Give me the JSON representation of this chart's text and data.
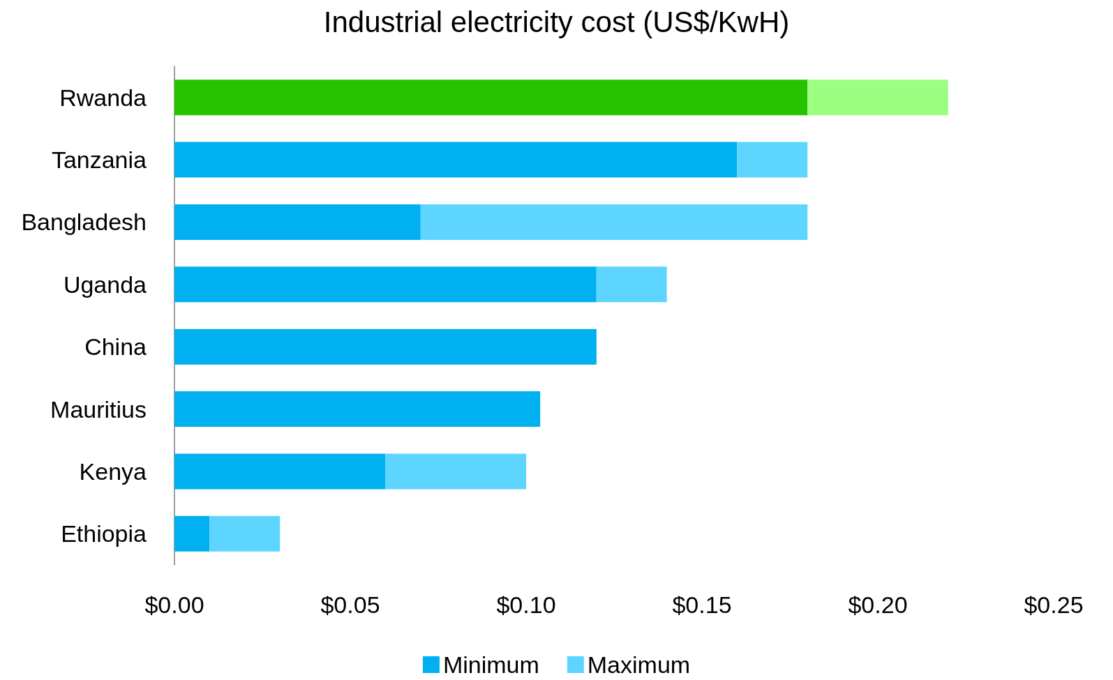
{
  "chart_data": {
    "type": "bar",
    "title": "Industrial electricity cost (US$/KwH)",
    "orientation": "horizontal",
    "stacked": true,
    "categories": [
      "Rwanda",
      "Tanzania",
      "Bangladesh",
      "Uganda",
      "China",
      "Mauritius",
      "Kenya",
      "Ethiopia"
    ],
    "series": [
      {
        "name": "Minimum",
        "color": "#00b0f0",
        "colors": [
          "#27c200",
          "#00b0f0",
          "#00b0f0",
          "#00b0f0",
          "#00b0f0",
          "#00b0f0",
          "#00b0f0",
          "#00b0f0"
        ],
        "values": [
          0.18,
          0.16,
          0.07,
          0.12,
          0.12,
          0.104,
          0.06,
          0.01
        ]
      },
      {
        "name": "Maximum",
        "color": "#5dd5ff",
        "colors": [
          "#9bff82",
          "#5dd5ff",
          "#5dd5ff",
          "#5dd5ff",
          "#5dd5ff",
          "#5dd5ff",
          "#5dd5ff",
          "#5dd5ff"
        ],
        "values": [
          0.04,
          0.02,
          0.11,
          0.02,
          null,
          null,
          0.04,
          0.02
        ]
      }
    ],
    "xlim": [
      0,
      0.25
    ],
    "xticks": [
      {
        "value": 0,
        "label": "$0.00"
      },
      {
        "value": 0.05,
        "label": "$0.05"
      },
      {
        "value": 0.1,
        "label": "$0.10"
      },
      {
        "value": 0.15,
        "label": "$0.15"
      },
      {
        "value": 0.2,
        "label": "$0.20"
      },
      {
        "value": 0.25,
        "label": "$0.25"
      }
    ],
    "grid": false,
    "legend": "bottom"
  }
}
